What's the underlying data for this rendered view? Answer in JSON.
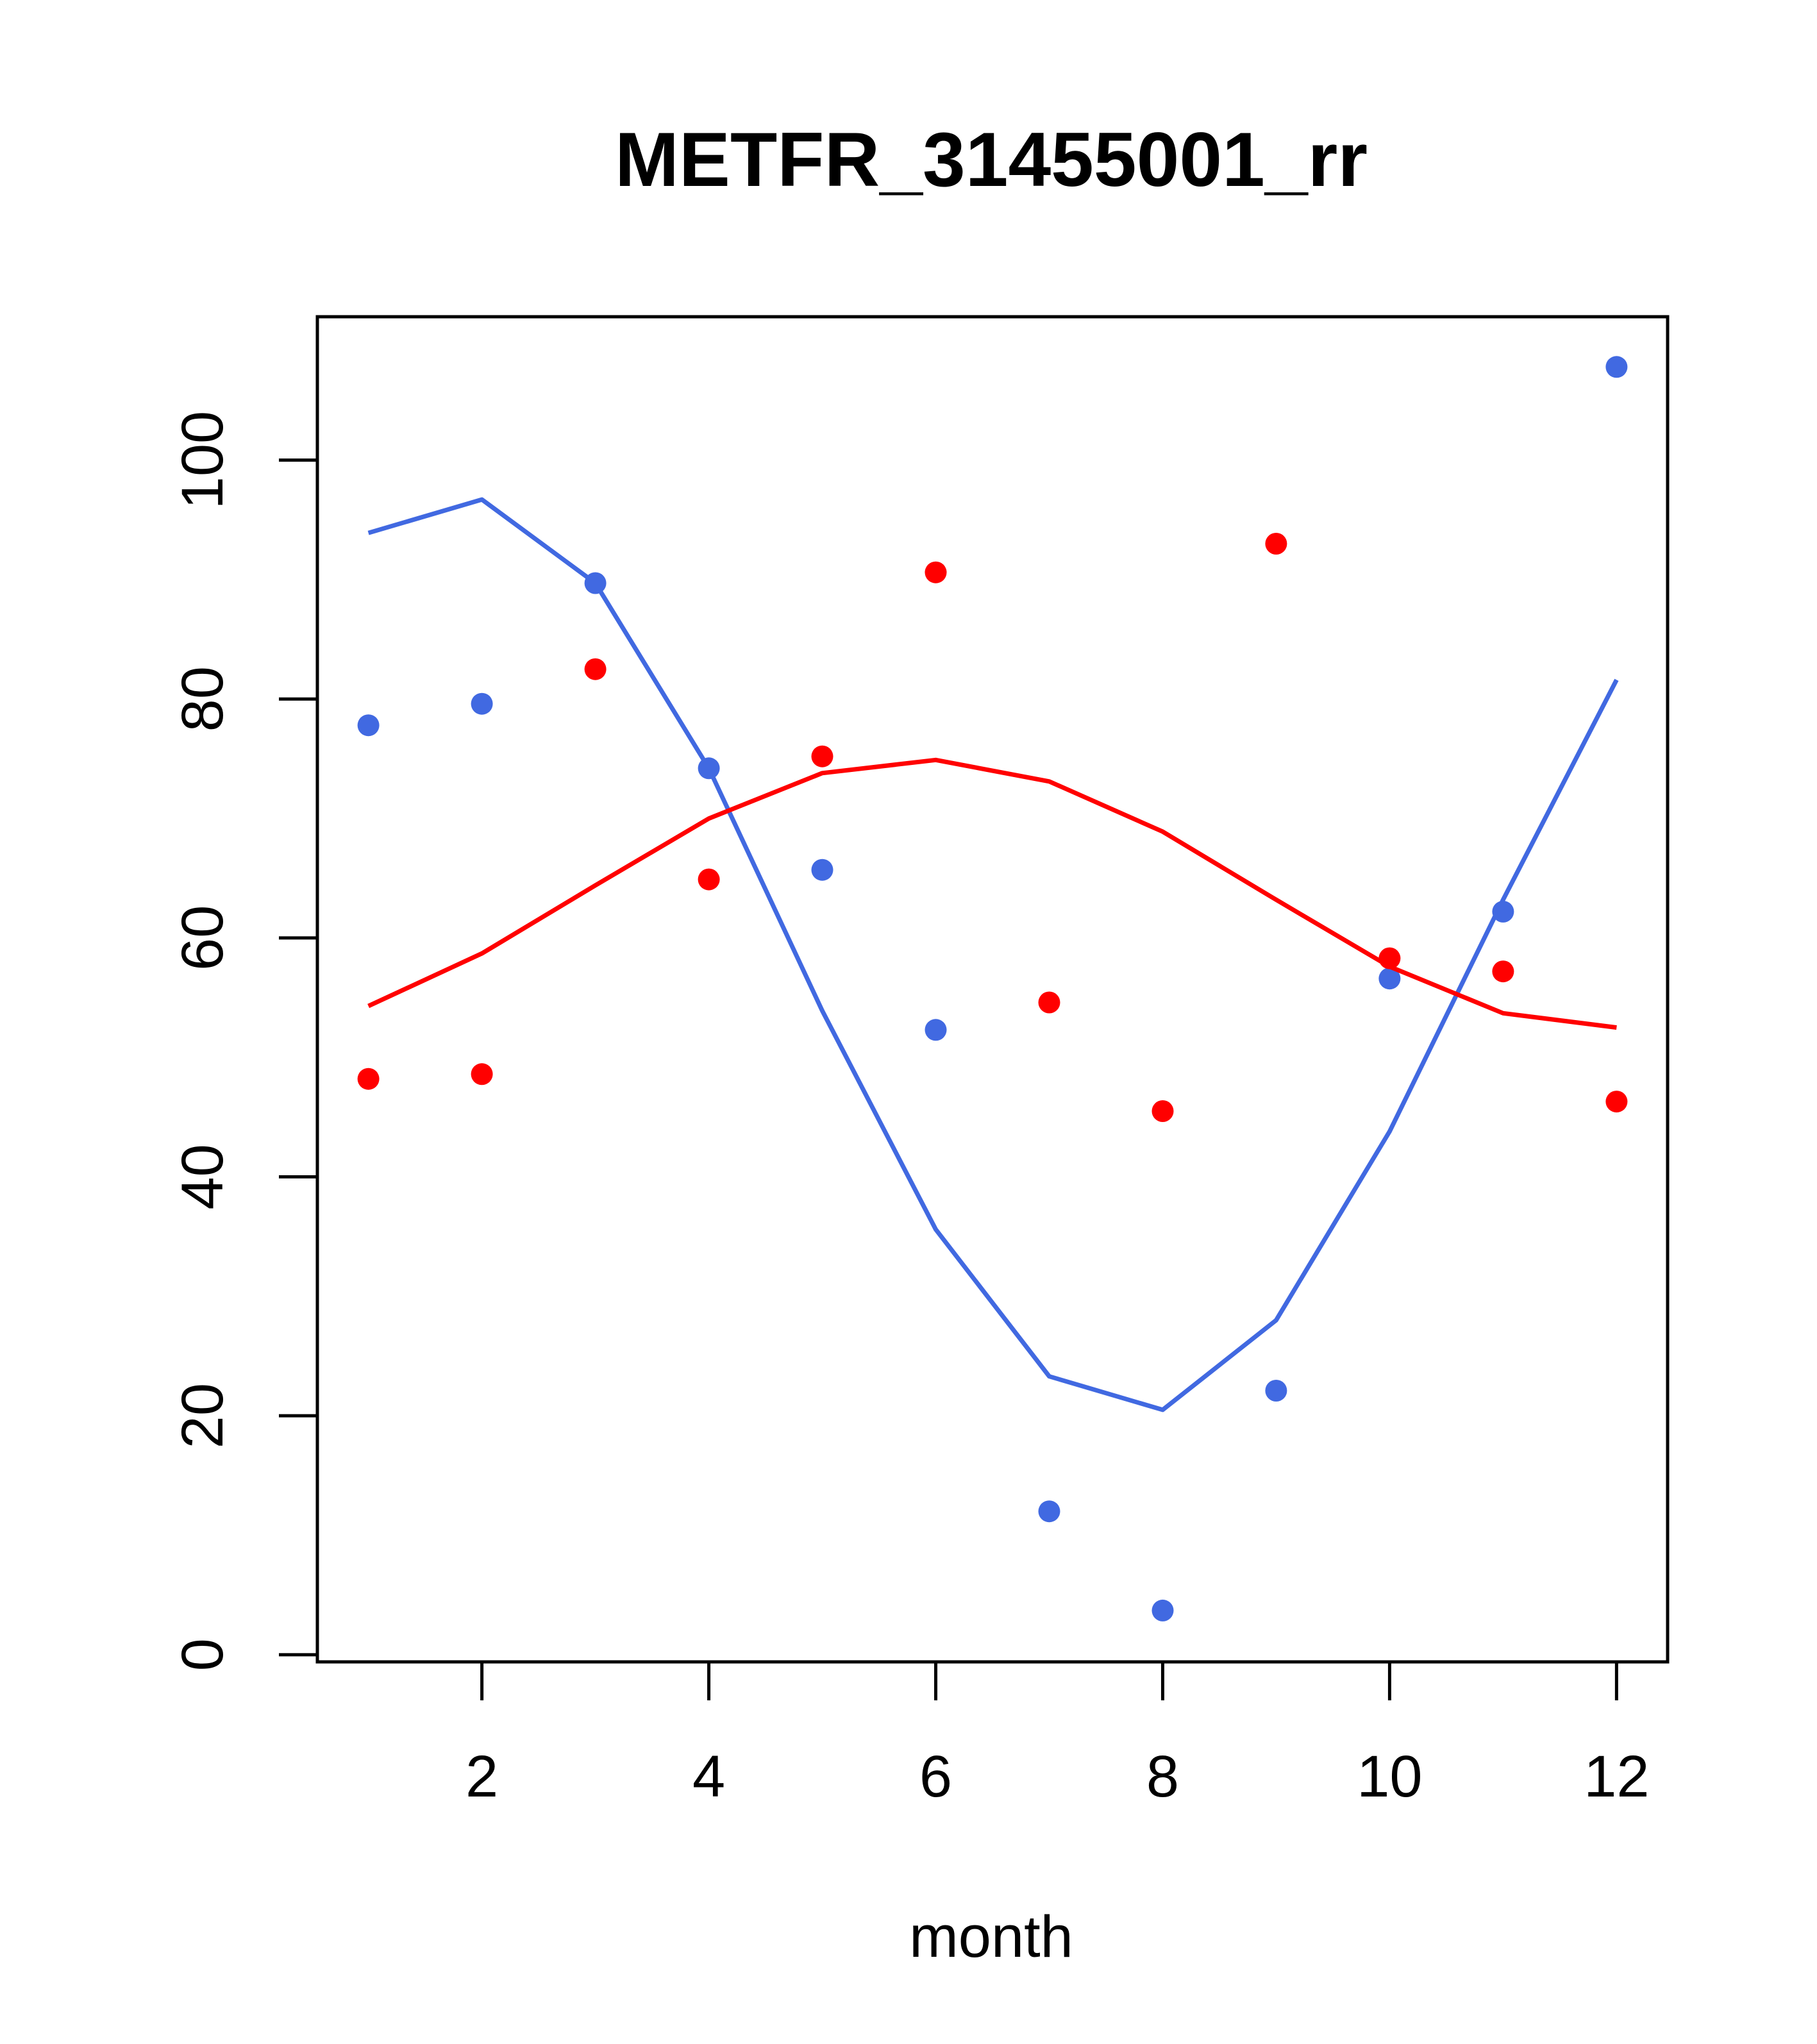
{
  "chart_data": {
    "type": "scatter",
    "title": "METFR_31455001_rr",
    "xlabel": "month",
    "ylabel": "",
    "xlim": [
      0.55,
      12.45
    ],
    "ylim": [
      -0.6,
      112
    ],
    "x_ticks": [
      2,
      4,
      6,
      8,
      10,
      12
    ],
    "x_tick_labels": [
      "2",
      "4",
      "6",
      "8",
      "10",
      "12"
    ],
    "y_ticks": [
      0,
      20,
      40,
      60,
      80,
      100
    ],
    "y_tick_labels": [
      "0",
      "20",
      "40",
      "60",
      "80",
      "100"
    ],
    "grid": false,
    "legend": "none",
    "series": [
      {
        "color": "#4169E1",
        "x": [
          1,
          2,
          3,
          4,
          5,
          6,
          7,
          8,
          9,
          10,
          11,
          12
        ],
        "points": [
          77.8,
          79.6,
          89.7,
          74.2,
          65.7,
          52.3,
          12.0,
          3.7,
          22.1,
          56.6,
          62.2,
          107.8
        ],
        "line": [
          93.9,
          96.7,
          89.7,
          74.2,
          53.9,
          35.6,
          23.3,
          20.5,
          28.0,
          43.8,
          63.2,
          81.6
        ]
      },
      {
        "color": "#FF0000",
        "x": [
          1,
          2,
          3,
          4,
          5,
          6,
          7,
          8,
          9,
          10,
          11,
          12
        ],
        "points": [
          48.2,
          48.6,
          82.5,
          64.9,
          75.2,
          90.6,
          54.6,
          45.5,
          93.0,
          58.3,
          57.2,
          46.3
        ],
        "line": [
          54.3,
          58.7,
          64.4,
          70.0,
          73.8,
          74.9,
          73.1,
          68.9,
          63.2,
          57.6,
          53.7,
          52.5
        ]
      }
    ]
  }
}
